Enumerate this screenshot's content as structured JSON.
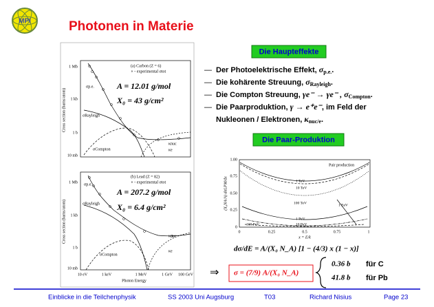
{
  "header": {
    "logo": "MPI",
    "title": "Photonen in Materie"
  },
  "figure": {
    "top": {
      "panel": "(a) Carbon (Z = 6)",
      "legend": "∘ - experimental σtot",
      "labels": [
        "σp.e.",
        "σRayleigh",
        "σCompton",
        "κnuc",
        "κe"
      ],
      "A": "A = 12.01 g/mol",
      "X0": "X₀ = 43 g/cm²",
      "yticks": [
        "1 Mb",
        "1 kb",
        "1 b",
        "10 mb"
      ]
    },
    "bottom": {
      "panel": "(b) Lead (Z = 82)",
      "legend": "∘ - experimental σtot",
      "labels": [
        "σp.e.",
        "σRayleigh",
        "σCompton",
        "κnuc",
        "κe"
      ],
      "A": "A = 207.2 g/mol",
      "X0": "X₀ = 6.4 g/cm²",
      "yticks": [
        "1 Mb",
        "1 kb",
        "1 b",
        "10 mb"
      ]
    },
    "ylabel": "Cross section (barns/atom)",
    "xticks": [
      "10 eV",
      "1 keV",
      "1 MeV",
      "1 GeV",
      "100 GeV"
    ],
    "xlabel": "Photon Energy"
  },
  "main_effects": {
    "heading": "Die Haupteffekte",
    "items": [
      {
        "dash": "—",
        "parts": [
          {
            "text": "Der Photoelektrische Effekt, ",
            "style": "normal"
          },
          {
            "text": "σ",
            "style": "math"
          },
          {
            "text": "p.e.",
            "style": "sub"
          },
          {
            "text": ".",
            "style": "normal"
          }
        ]
      },
      {
        "dash": "—",
        "parts": [
          {
            "text": "Die kohärente Streuung, ",
            "style": "normal"
          },
          {
            "text": "σ",
            "style": "math"
          },
          {
            "text": "Rayleigh",
            "style": "sub"
          },
          {
            "text": ".",
            "style": "normal"
          }
        ]
      },
      {
        "dash": "—",
        "parts": [
          {
            "text": "Die Compton Streuung, ",
            "style": "normal"
          },
          {
            "text": "γe⁻ → γe⁻ , σ",
            "style": "math"
          },
          {
            "text": "Compton",
            "style": "sub"
          },
          {
            "text": ".",
            "style": "normal"
          }
        ]
      },
      {
        "dash": "—",
        "parts": [
          {
            "text": "Die Paarproduktion, ",
            "style": "normal"
          },
          {
            "text": "γ → e⁺e⁻",
            "style": "math"
          },
          {
            "text": ", im Feld der",
            "style": "normal"
          }
        ]
      },
      {
        "dash": "",
        "parts": [
          {
            "text": "Nukleonen / Elektronen, ",
            "style": "normal"
          },
          {
            "text": "κ",
            "style": "math"
          },
          {
            "text": "nuc/e",
            "style": "sub"
          },
          {
            "text": ".",
            "style": "normal"
          }
        ]
      }
    ]
  },
  "pair_production": {
    "heading": "Die Paar-Produktion",
    "plot": {
      "title": "Pair production",
      "yticks": [
        "1.00",
        "0.75",
        "0.50",
        "0.25",
        "0"
      ],
      "xticks": [
        "0",
        "0.25",
        "0.5",
        "0.75",
        "1"
      ],
      "xlabel": "x = E/k",
      "ylabel": "(X₀NA/A) dσLPM/dx",
      "curves": [
        "1 TeV",
        "10 TeV",
        "100 TeV",
        "1 EeV",
        "1 PeV",
        "10 PeV",
        "100 PeV"
      ]
    },
    "formula": "dσ/dE = A/(X₀ N_A) [1 − (4/3) x (1 − x)]",
    "arrow": "⇒",
    "sigma": "σ = (7/9) A/(X₀ N_A)",
    "results": [
      {
        "value": "0.36 b",
        "target": "für C"
      },
      {
        "value": "41.8 b",
        "target": "für Pb"
      }
    ]
  },
  "footer": [
    "Einblicke in die Teilchenphysik",
    "SS 2003 Uni Augsburg",
    "T03",
    "Richard Nisius",
    "Page 23"
  ]
}
